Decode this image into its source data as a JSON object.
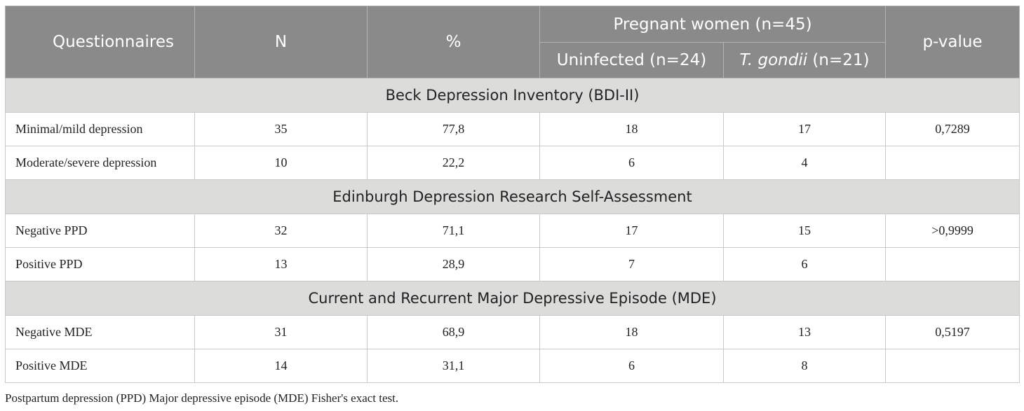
{
  "header": {
    "questionnaires": "Questionnaires",
    "n": "N",
    "percent": "%",
    "pregnant": "Pregnant women (n=45)",
    "uninfected": "Uninfected (n=24)",
    "tgondii_italic": "T. gondii",
    "tgondii_rest": " (n=21)",
    "pvalue": "p-value"
  },
  "sections": [
    {
      "title": "Beck Depression Inventory (BDI-II)",
      "rows": [
        {
          "label": "Minimal/mild depression",
          "n": "35",
          "pct": "77,8",
          "uninfected": "18",
          "tgondii": "17",
          "p": "0,7289"
        },
        {
          "label": "Moderate/severe depression",
          "n": "10",
          "pct": "22,2",
          "uninfected": "6",
          "tgondii": "4",
          "p": ""
        }
      ]
    },
    {
      "title": "Edinburgh Depression Research Self-Assessment",
      "rows": [
        {
          "label": "Negative PPD",
          "n": "32",
          "pct": "71,1",
          "uninfected": "17",
          "tgondii": "15",
          "p": ">0,9999"
        },
        {
          "label": "Positive PPD",
          "n": "13",
          "pct": "28,9",
          "uninfected": "7",
          "tgondii": "6",
          "p": ""
        }
      ]
    },
    {
      "title": "Current and Recurrent Major Depressive Episode (MDE)",
      "rows": [
        {
          "label": "Negative MDE",
          "n": "31",
          "pct": "68,9",
          "uninfected": "18",
          "tgondii": "13",
          "p": "0,5197"
        },
        {
          "label": "Positive MDE",
          "n": "14",
          "pct": "31,1",
          "uninfected": "6",
          "tgondii": "8",
          "p": ""
        }
      ]
    }
  ],
  "footnote": "Postpartum depression (PPD) Major depressive episode (MDE) Fisher's exact test."
}
